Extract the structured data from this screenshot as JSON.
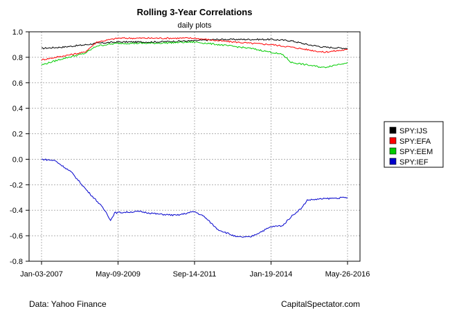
{
  "chart_data": {
    "type": "line",
    "title": "Rolling 3-Year Correlations",
    "subtitle": "daily plots",
    "x_tick_labels": [
      "Jan-03-2007",
      "May-09-2009",
      "Sep-14-2011",
      "Jan-19-2014",
      "May-26-2016"
    ],
    "x_range": [
      "2007-01-03",
      "2016-05-26"
    ],
    "ylim": [
      -0.8,
      1.0
    ],
    "y_ticks": [
      "1.0",
      "0.8",
      "0.6",
      "0.4",
      "0.2",
      "0.0",
      "-0.2",
      "-0.4",
      "-0.6",
      "-0.8"
    ],
    "grid": true,
    "legend_position": "right",
    "series": [
      {
        "name": "SPY:IJS",
        "color": "#000000",
        "points": [
          [
            "2007-01-03",
            0.87
          ],
          [
            "2007-09-01",
            0.88
          ],
          [
            "2008-06-01",
            0.9
          ],
          [
            "2008-09-15",
            0.91
          ],
          [
            "2009-05-09",
            0.92
          ],
          [
            "2010-06-01",
            0.92
          ],
          [
            "2011-09-14",
            0.93
          ],
          [
            "2012-06-01",
            0.94
          ],
          [
            "2013-06-01",
            0.94
          ],
          [
            "2014-01-19",
            0.94
          ],
          [
            "2014-09-01",
            0.93
          ],
          [
            "2015-03-01",
            0.9
          ],
          [
            "2015-09-01",
            0.88
          ],
          [
            "2016-05-26",
            0.87
          ]
        ]
      },
      {
        "name": "SPY:EFA",
        "color": "#ff0000",
        "points": [
          [
            "2007-01-03",
            0.78
          ],
          [
            "2007-09-01",
            0.81
          ],
          [
            "2008-05-01",
            0.84
          ],
          [
            "2008-09-15",
            0.92
          ],
          [
            "2009-05-09",
            0.95
          ],
          [
            "2010-06-01",
            0.95
          ],
          [
            "2011-09-14",
            0.95
          ],
          [
            "2012-06-01",
            0.93
          ],
          [
            "2013-06-01",
            0.91
          ],
          [
            "2014-01-19",
            0.9
          ],
          [
            "2014-09-01",
            0.88
          ],
          [
            "2015-03-01",
            0.86
          ],
          [
            "2015-09-01",
            0.84
          ],
          [
            "2016-05-26",
            0.86
          ]
        ]
      },
      {
        "name": "SPY:EEM",
        "color": "#00cc00",
        "points": [
          [
            "2007-01-03",
            0.74
          ],
          [
            "2007-09-01",
            0.79
          ],
          [
            "2008-05-01",
            0.83
          ],
          [
            "2008-09-15",
            0.89
          ],
          [
            "2009-05-09",
            0.91
          ],
          [
            "2010-06-01",
            0.91
          ],
          [
            "2011-09-14",
            0.92
          ],
          [
            "2012-06-01",
            0.9
          ],
          [
            "2013-06-01",
            0.87
          ],
          [
            "2014-01-19",
            0.84
          ],
          [
            "2014-06-01",
            0.82
          ],
          [
            "2014-09-01",
            0.76
          ],
          [
            "2015-03-01",
            0.74
          ],
          [
            "2015-09-01",
            0.72
          ],
          [
            "2016-05-26",
            0.76
          ]
        ]
      },
      {
        "name": "SPY:IEF",
        "color": "#0000cc",
        "points": [
          [
            "2007-01-03",
            0.0
          ],
          [
            "2007-06-01",
            -0.01
          ],
          [
            "2007-12-01",
            -0.1
          ],
          [
            "2008-06-01",
            -0.25
          ],
          [
            "2008-10-15",
            -0.35
          ],
          [
            "2009-01-01",
            -0.42
          ],
          [
            "2009-02-15",
            -0.48
          ],
          [
            "2009-04-01",
            -0.42
          ],
          [
            "2010-01-01",
            -0.41
          ],
          [
            "2010-08-01",
            -0.43
          ],
          [
            "2011-03-01",
            -0.44
          ],
          [
            "2011-09-14",
            -0.41
          ],
          [
            "2012-01-01",
            -0.45
          ],
          [
            "2012-06-01",
            -0.55
          ],
          [
            "2013-01-01",
            -0.61
          ],
          [
            "2013-06-01",
            -0.61
          ],
          [
            "2014-01-19",
            -0.53
          ],
          [
            "2014-06-01",
            -0.52
          ],
          [
            "2014-09-01",
            -0.45
          ],
          [
            "2015-01-01",
            -0.38
          ],
          [
            "2015-03-01",
            -0.32
          ],
          [
            "2015-09-01",
            -0.31
          ],
          [
            "2016-05-26",
            -0.3
          ]
        ]
      }
    ]
  },
  "footer": {
    "source": "Data: Yahoo Finance",
    "site": "CapitalSpectator.com"
  }
}
